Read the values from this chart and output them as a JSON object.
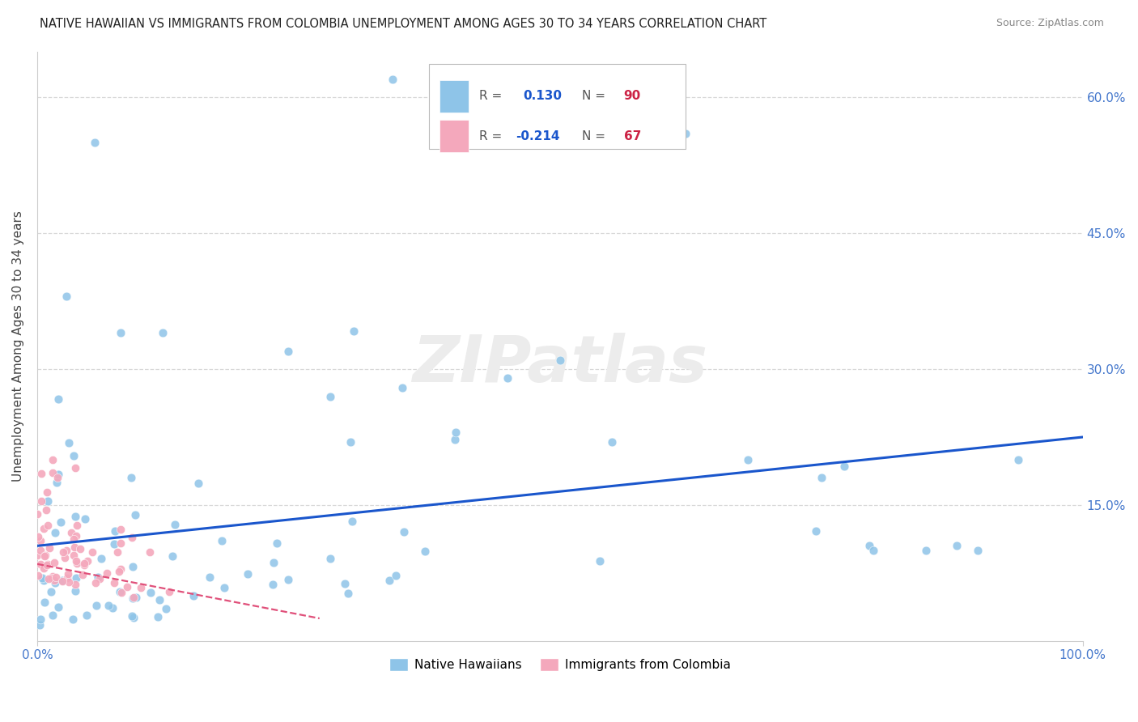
{
  "title": "NATIVE HAWAIIAN VS IMMIGRANTS FROM COLOMBIA UNEMPLOYMENT AMONG AGES 30 TO 34 YEARS CORRELATION CHART",
  "source": "Source: ZipAtlas.com",
  "ylabel": "Unemployment Among Ages 30 to 34 years",
  "watermark": "ZIPatlas",
  "legend_label1": "Native Hawaiians",
  "legend_label2": "Immigrants from Colombia",
  "blue_color": "#8ec4e8",
  "pink_color": "#f4a8bc",
  "blue_line_color": "#1a56cc",
  "pink_line_color": "#e0507a",
  "blue_r": "0.130",
  "blue_n": "90",
  "pink_r": "-0.214",
  "pink_n": "67",
  "r_color": "#1a56cc",
  "n_color": "#cc2244",
  "xlim": [
    0,
    100
  ],
  "ylim": [
    0,
    65
  ],
  "background_color": "#ffffff",
  "watermark_color": "#ececec",
  "title_color": "#222222",
  "source_color": "#888888",
  "ylabel_color": "#444444",
  "xtick_color": "#4477cc",
  "ytick_color": "#4477cc",
  "grid_color": "#d8d8d8",
  "spine_color": "#cccccc"
}
